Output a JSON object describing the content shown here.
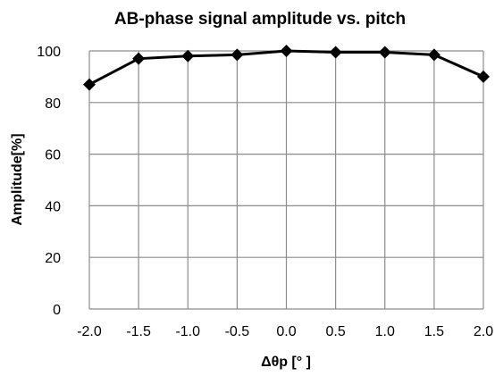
{
  "chart_data": {
    "type": "line",
    "title": "AB-phase signal amplitude vs. pitch",
    "xlabel": "Δθp [°  ]",
    "ylabel": "Amplitude[%]",
    "x": [
      -2.0,
      -1.5,
      -1.0,
      -0.5,
      0.0,
      0.5,
      1.0,
      1.5,
      2.0
    ],
    "x_tick_labels": [
      "-2.0",
      "-1.5",
      "-1.0",
      "-0.5",
      "0.0",
      "0.5",
      "1.0",
      "1.5",
      "2.0"
    ],
    "y_ticks": [
      0,
      20,
      40,
      60,
      80,
      100
    ],
    "y_tick_labels": [
      "0",
      "20",
      "40",
      "60",
      "80",
      "100"
    ],
    "xlim": [
      -2.0,
      2.0
    ],
    "ylim": [
      0,
      100
    ],
    "grid": true,
    "series": [
      {
        "values": [
          87,
          97,
          98,
          98.5,
          100,
          99.5,
          99.5,
          98.5,
          90
        ],
        "color": "#000000",
        "marker": "diamond"
      }
    ]
  }
}
